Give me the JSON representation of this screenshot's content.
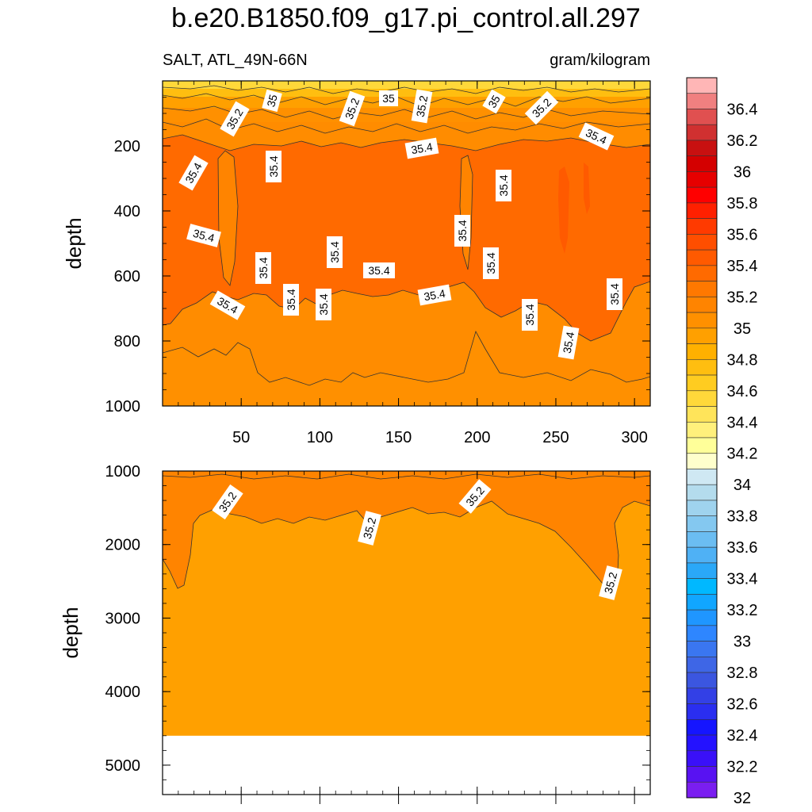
{
  "title": "b.e20.B1850.f09_g17.pi_control.all.297",
  "left_subtitle": "SALT, ATL_49N-66N",
  "right_subtitle": "gram/kilogram",
  "chart_data": {
    "type": "contour",
    "variable": "SALT",
    "region": "ATL_49N-66N",
    "units": "gram/kilogram",
    "panels": [
      {
        "name": "upper",
        "ylabel": "depth",
        "ylim": [
          1000,
          0
        ],
        "xlim": [
          0,
          310
        ],
        "yticks": [
          200,
          400,
          600,
          800,
          1000
        ],
        "xticks": [
          50,
          100,
          150,
          200,
          250,
          300
        ],
        "contour_labels": [
          "35",
          "35.2",
          "35.2",
          "35",
          "35.2",
          "35",
          "35.2",
          "35.4",
          "35.4",
          "35.4",
          "35.4",
          "35.4",
          "35.4",
          "35.4",
          "35.4",
          "35.4",
          "35.4",
          "35.4",
          "35.4",
          "35.4",
          "35.4",
          "35.4",
          "35.4",
          "35.4",
          "35.4"
        ]
      },
      {
        "name": "lower",
        "ylabel": "depth",
        "ylim": [
          1000,
          5400
        ],
        "xlim": [
          0,
          310
        ],
        "yticks": [
          1000,
          2000,
          3000,
          4000,
          5000
        ],
        "contour_labels": [
          "35.2",
          "35.2",
          "35.2",
          "35.2"
        ],
        "no_data_below": 4600
      }
    ],
    "colorbar": {
      "levels": [
        "36.4",
        "36.2",
        "36",
        "35.8",
        "35.6",
        "35.4",
        "35.2",
        "35",
        "34.8",
        "34.6",
        "34.4",
        "34.2",
        "34",
        "33.8",
        "33.6",
        "33.4",
        "33.2",
        "33",
        "32.8",
        "32.6",
        "32.4",
        "32.2",
        "32"
      ],
      "colors": [
        "#ffb6b6",
        "#f08080",
        "#e05050",
        "#d03030",
        "#c81010",
        "#d40000",
        "#e60000",
        "#ff0000",
        "#ff2000",
        "#ff3a00",
        "#ff4e00",
        "#ff5a00",
        "#ff6a00",
        "#ff7800",
        "#ff8400",
        "#ff9000",
        "#ffa000",
        "#ffb000",
        "#ffbe10",
        "#ffcc20",
        "#ffd83a",
        "#ffe45a",
        "#fff07c",
        "#ffff99",
        "#ffffcc",
        "#cfe8f3",
        "#b4dced",
        "#9fd3ee",
        "#84c8f0",
        "#6bbdf2",
        "#4fb1f5",
        "#2aa8f8",
        "#00b8ff",
        "#11a6ff",
        "#1f96ff",
        "#2e86ff",
        "#3a76f0",
        "#3e66e6",
        "#3b56e0",
        "#3340e6",
        "#2a2ef0",
        "#1515ff",
        "#2412ff",
        "#3a10f8",
        "#5812f2",
        "#7a1ef0"
      ]
    }
  }
}
